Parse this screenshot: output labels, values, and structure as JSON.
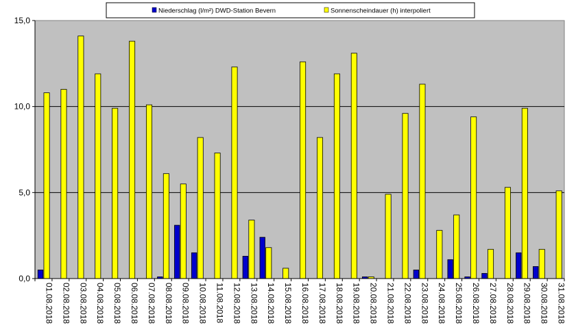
{
  "chart_data": {
    "type": "bar",
    "categories": [
      "01.08.2018",
      "02.08.2018",
      "03.08.2018",
      "04.08.2018",
      "05.08.2018",
      "06.08.2018",
      "07.08.2018",
      "08.08.2018",
      "09.08.2018",
      "10.08.2018",
      "11.08.2018",
      "12.08.2018",
      "13.08.2018",
      "14.08.2018",
      "15.08.2018",
      "16.08.2018",
      "17.08.2018",
      "18.08.2018",
      "19.08.2018",
      "20.08.2018",
      "21.08.2018",
      "22.08.2018",
      "23.08.2018",
      "24.08.2018",
      "25.08.2018",
      "26.08.2018",
      "27.08.2018",
      "28.08.2018",
      "29.08.2018",
      "30.08.2018",
      "31.08.2018"
    ],
    "series": [
      {
        "name": "Niederschlag (l/m²) DWD-Station Bevern",
        "color": "#0000cc",
        "values": [
          0.5,
          0,
          0,
          0,
          0,
          0,
          0,
          0.1,
          3.1,
          1.5,
          0,
          0,
          1.3,
          2.4,
          0,
          0,
          0,
          0,
          0,
          0.1,
          0,
          0,
          0.5,
          0,
          1.1,
          0.1,
          0.3,
          0,
          1.5,
          0.7,
          0
        ]
      },
      {
        "name": "Sonnenscheindauer (h) interpoliert",
        "color": "#ffff00",
        "values": [
          10.8,
          11.0,
          14.1,
          11.9,
          9.9,
          13.8,
          10.1,
          6.1,
          5.5,
          8.2,
          7.3,
          12.3,
          3.4,
          1.8,
          0.6,
          12.6,
          8.2,
          11.9,
          13.1,
          0.1,
          4.9,
          9.6,
          11.3,
          2.8,
          3.7,
          9.4,
          1.7,
          5.3,
          9.9,
          1.7,
          5.1
        ]
      }
    ],
    "yticks": [
      "0,0",
      "5,0",
      "10,0",
      "15,0"
    ],
    "ylim": [
      0,
      15
    ],
    "grid": true,
    "legend_position": "top",
    "plot_background": "#c0c0c0"
  }
}
